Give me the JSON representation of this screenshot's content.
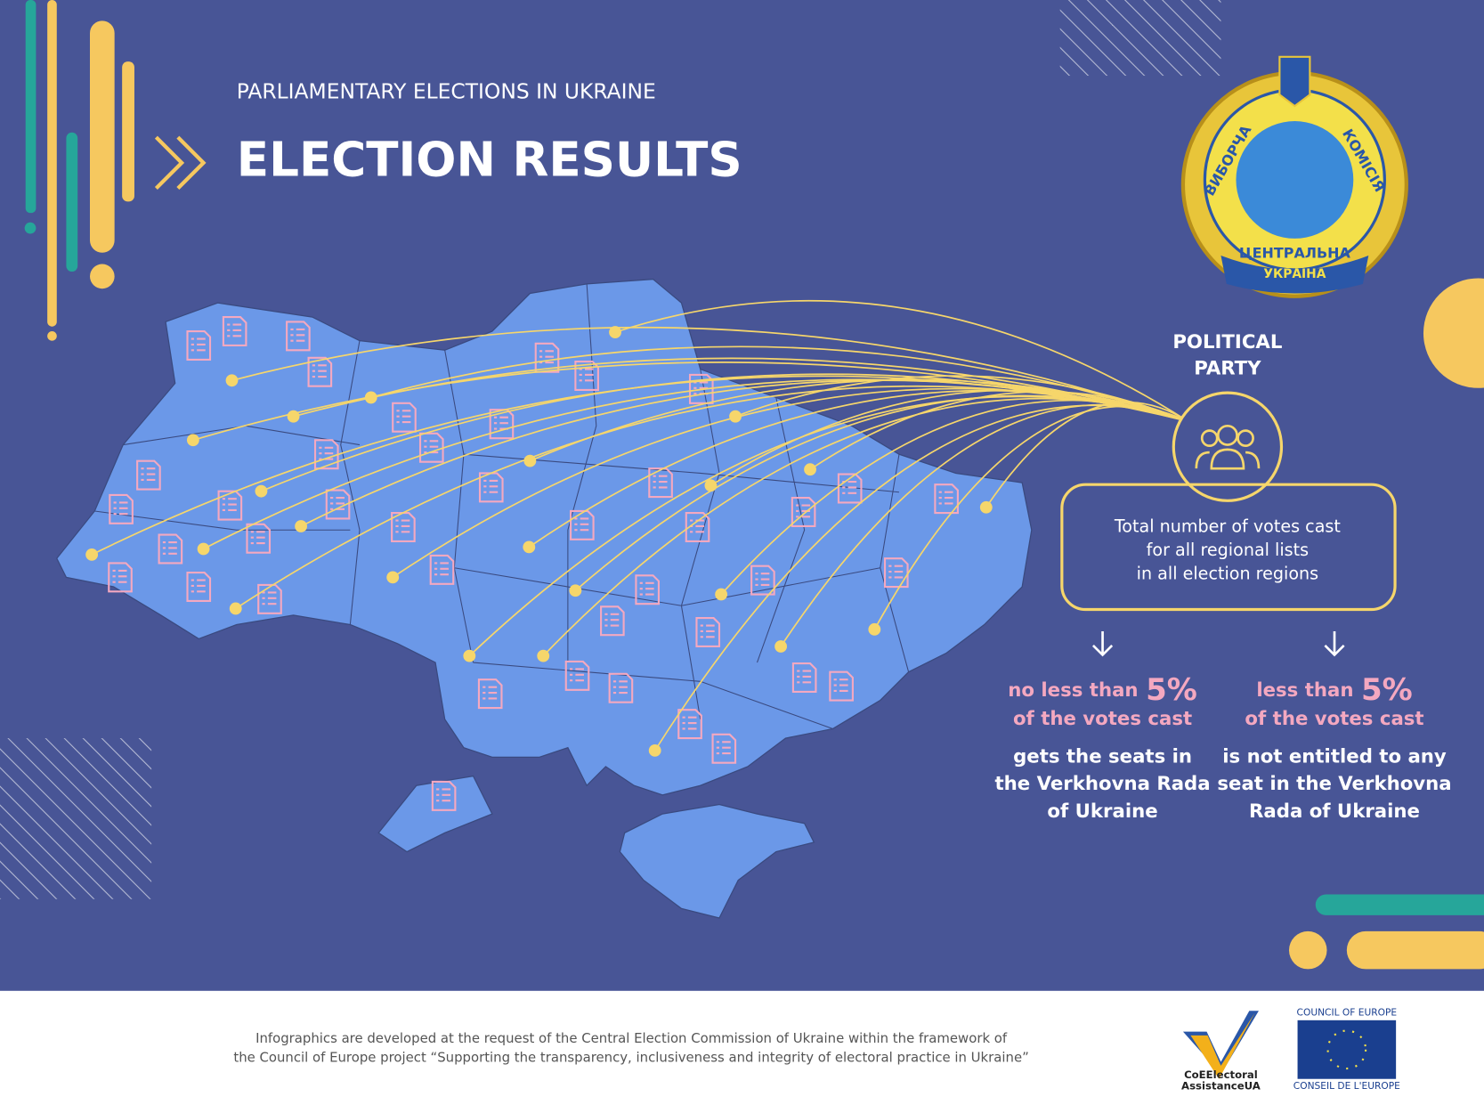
{
  "header": {
    "subtitle": "PARLIAMENTARY ELECTIONS IN UKRAINE",
    "title": "ELECTION RESULTS"
  },
  "emblem": {
    "top_left": "ВИБОРЧА",
    "top_right": "КОМІСІЯ",
    "bottom": "ЦЕНТРАЛЬНА",
    "ribbon": "УКРАЇНА"
  },
  "party": {
    "label": [
      "POLITICAL",
      "PARTY"
    ]
  },
  "total_box": {
    "lines": [
      "Total number of votes cast",
      "for all regional lists",
      "in all election regions"
    ]
  },
  "outcomes": [
    {
      "condition": "no less than",
      "threshold": "5%",
      "condition_rest": "of the votes cast",
      "result": [
        "gets the seats in",
        "the Verkhovna Rada",
        "of Ukraine"
      ]
    },
    {
      "condition": "less than",
      "threshold": "5%",
      "condition_rest": "of the votes cast",
      "result": [
        "is not entitled to any",
        "seat in the Verkhovna",
        "Rada of Ukraine"
      ]
    }
  ],
  "footer": {
    "note": [
      "Infographics are developed at the request of the Central Election Commission of Ukraine within the framework of",
      "the Council of Europe project  “Supporting the transparency, inclusiveness and integrity of electoral practice in Ukraine”"
    ],
    "logo_left": [
      "CoEElectoral",
      "AssistanceUA"
    ],
    "logo_right_top": "COUNCIL OF EUROPE",
    "logo_right_bottom": "CONSEIL DE L'EUROPE"
  }
}
